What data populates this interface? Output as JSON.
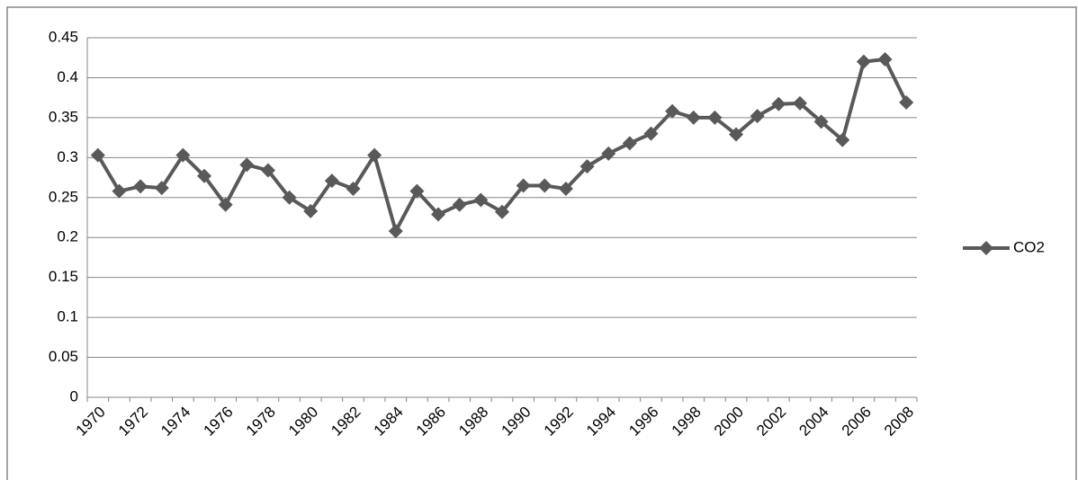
{
  "chart_data": {
    "type": "line",
    "categories": [
      "1970",
      null,
      "1972",
      null,
      "1974",
      null,
      "1976",
      null,
      "1978",
      null,
      "1980",
      null,
      "1982",
      null,
      "1984",
      null,
      "1986",
      null,
      "1988",
      null,
      "1990",
      null,
      "1992",
      null,
      "1994",
      null,
      "1996",
      null,
      "1998",
      null,
      "2000",
      null,
      "2002",
      null,
      "2004",
      null,
      "2006",
      null,
      "2008"
    ],
    "series": [
      {
        "name": "CO2",
        "color": "#595959",
        "values": [
          0.303,
          0.258,
          0.264,
          0.262,
          0.303,
          0.277,
          0.241,
          0.291,
          0.284,
          0.25,
          0.233,
          0.271,
          0.261,
          0.303,
          0.208,
          0.258,
          0.229,
          0.241,
          0.247,
          0.232,
          0.265,
          0.265,
          0.261,
          0.289,
          0.305,
          0.318,
          0.33,
          0.358,
          0.35,
          0.35,
          0.329,
          0.352,
          0.367,
          0.368,
          0.345,
          0.322,
          0.42,
          0.423,
          0.369
        ]
      }
    ],
    "ylim": [
      0,
      0.45
    ],
    "yticks": [
      0,
      0.05,
      0.1,
      0.15,
      0.2,
      0.25,
      0.3,
      0.35,
      0.4,
      0.45
    ],
    "grid": true,
    "legend": "right"
  }
}
